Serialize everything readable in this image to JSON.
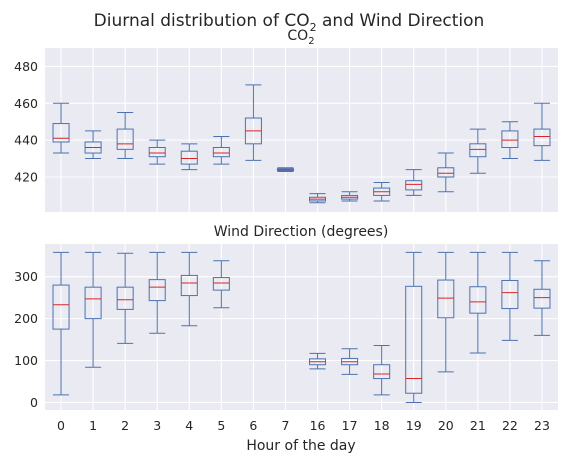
{
  "figure": {
    "suptitle_main": "Diurnal distribution of CO",
    "suptitle_sub": "2",
    "suptitle_rest": " and Wind Direction",
    "xlabel": "Hour of the day"
  },
  "chart_data": [
    {
      "type": "box",
      "title_main": "CO",
      "title_sub": "2",
      "categories": [
        "0",
        "1",
        "2",
        "3",
        "4",
        "5",
        "6",
        "7",
        "16",
        "17",
        "18",
        "19",
        "20",
        "21",
        "22",
        "23"
      ],
      "ylim": [
        401,
        490
      ],
      "yticks": [
        420,
        440,
        460,
        480
      ],
      "boxes": [
        {
          "min": 433,
          "q1": 439,
          "median": 441,
          "q3": 449,
          "max": 460
        },
        {
          "min": 430,
          "q1": 433,
          "median": 436,
          "q3": 439,
          "max": 445
        },
        {
          "min": 430,
          "q1": 435,
          "median": 438,
          "q3": 446,
          "max": 455
        },
        {
          "min": 427,
          "q1": 431,
          "median": 433,
          "q3": 436,
          "max": 440
        },
        {
          "min": 424,
          "q1": 427,
          "median": 430,
          "q3": 434,
          "max": 438
        },
        {
          "min": 427,
          "q1": 431,
          "median": 433,
          "q3": 436,
          "max": 442
        },
        {
          "min": 429,
          "q1": 438,
          "median": 445,
          "q3": 452,
          "max": 470
        },
        {
          "min": 423,
          "q1": 423.5,
          "median": 424,
          "q3": 424.5,
          "max": 425
        },
        {
          "min": 406,
          "q1": 407,
          "median": 408,
          "q3": 409,
          "max": 411
        },
        {
          "min": 407,
          "q1": 408,
          "median": 409,
          "q3": 410,
          "max": 412
        },
        {
          "min": 407,
          "q1": 410,
          "median": 412,
          "q3": 414,
          "max": 417
        },
        {
          "min": 410,
          "q1": 413,
          "median": 416,
          "q3": 418,
          "max": 424
        },
        {
          "min": 412,
          "q1": 420,
          "median": 422,
          "q3": 425,
          "max": 433
        },
        {
          "min": 422,
          "q1": 431,
          "median": 435,
          "q3": 438,
          "max": 446
        },
        {
          "min": 430,
          "q1": 436,
          "median": 440,
          "q3": 445,
          "max": 450
        },
        {
          "min": 429,
          "q1": 437,
          "median": 442,
          "q3": 446,
          "max": 460
        }
      ]
    },
    {
      "type": "box",
      "title": "Wind Direction (degrees)",
      "categories": [
        "0",
        "1",
        "2",
        "3",
        "4",
        "5",
        "6",
        "7",
        "16",
        "17",
        "18",
        "19",
        "20",
        "21",
        "22",
        "23"
      ],
      "ylim": [
        -18,
        378
      ],
      "yticks": [
        0,
        100,
        200,
        300
      ],
      "boxes": [
        {
          "min": 18,
          "q1": 175,
          "median": 233,
          "q3": 280,
          "max": 358
        },
        {
          "min": 84,
          "q1": 200,
          "median": 247,
          "q3": 275,
          "max": 358
        },
        {
          "min": 141,
          "q1": 222,
          "median": 245,
          "q3": 275,
          "max": 356
        },
        {
          "min": 165,
          "q1": 243,
          "median": 275,
          "q3": 293,
          "max": 358
        },
        {
          "min": 183,
          "q1": 255,
          "median": 285,
          "q3": 303,
          "max": 358
        },
        {
          "min": 226,
          "q1": 268,
          "median": 285,
          "q3": 298,
          "max": 338
        },
        null,
        null,
        {
          "min": 80,
          "q1": 90,
          "median": 97,
          "q3": 104,
          "max": 117
        },
        {
          "min": 67,
          "q1": 90,
          "median": 97,
          "q3": 105,
          "max": 128
        },
        {
          "min": 18,
          "q1": 57,
          "median": 68,
          "q3": 90,
          "max": 136
        },
        {
          "min": 0,
          "q1": 22,
          "median": 57,
          "q3": 277,
          "max": 358
        },
        {
          "min": 73,
          "q1": 202,
          "median": 249,
          "q3": 292,
          "max": 358
        },
        {
          "min": 118,
          "q1": 213,
          "median": 240,
          "q3": 276,
          "max": 358
        },
        {
          "min": 148,
          "q1": 224,
          "median": 262,
          "q3": 291,
          "max": 358
        },
        {
          "min": 160,
          "q1": 225,
          "median": 250,
          "q3": 270,
          "max": 338
        }
      ]
    }
  ]
}
